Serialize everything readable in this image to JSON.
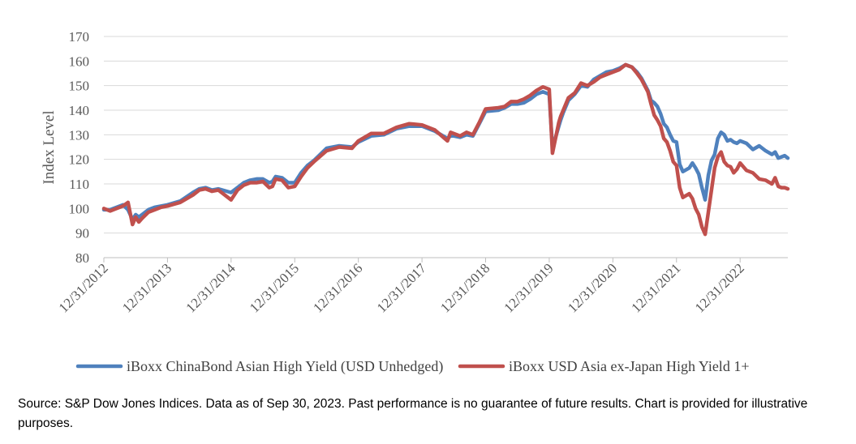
{
  "chart_data": {
    "type": "line",
    "title": "",
    "xlabel": "",
    "ylabel": "Index Level",
    "ylim": [
      80,
      170
    ],
    "y_ticks": [
      80,
      90,
      100,
      110,
      120,
      130,
      140,
      150,
      160,
      170
    ],
    "x_range": [
      2013.0,
      2023.75
    ],
    "x_tick_labels": [
      "12/31/2012",
      "12/31/2013",
      "12/31/2014",
      "12/31/2015",
      "12/31/2016",
      "12/31/2017",
      "12/31/2018",
      "12/31/2019",
      "12/31/2020",
      "12/31/2021",
      "12/31/2022"
    ],
    "x_tick_positions": [
      2013,
      2014,
      2015,
      2016,
      2017,
      2018,
      2019,
      2020,
      2021,
      2022,
      2023
    ],
    "grid": true,
    "legend_position": "bottom",
    "series": [
      {
        "name": "iBoxx ChinaBond Asian High Yield (USD Unhedged)",
        "color": "#4F81BD",
        "x": [
          2013.0,
          2013.1,
          2013.2,
          2013.3,
          2013.38,
          2013.45,
          2013.5,
          2013.55,
          2013.6,
          2013.7,
          2013.8,
          2013.9,
          2014.0,
          2014.2,
          2014.4,
          2014.5,
          2014.6,
          2014.7,
          2014.8,
          2015.0,
          2015.1,
          2015.2,
          2015.3,
          2015.4,
          2015.5,
          2015.6,
          2015.65,
          2015.7,
          2015.8,
          2015.9,
          2016.0,
          2016.1,
          2016.2,
          2016.3,
          2016.5,
          2016.7,
          2016.9,
          2017.0,
          2017.2,
          2017.4,
          2017.6,
          2017.8,
          2018.0,
          2018.2,
          2018.4,
          2018.45,
          2018.5,
          2018.6,
          2018.7,
          2018.8,
          2018.9,
          2019.0,
          2019.2,
          2019.3,
          2019.4,
          2019.5,
          2019.6,
          2019.7,
          2019.8,
          2019.9,
          2020.0,
          2020.05,
          2020.15,
          2020.18,
          2020.22,
          2020.3,
          2020.4,
          2020.5,
          2020.6,
          2020.7,
          2020.8,
          2020.9,
          2021.0,
          2021.1,
          2021.2,
          2021.3,
          2021.38,
          2021.45,
          2021.55,
          2021.6,
          2021.65,
          2021.7,
          2021.75,
          2021.8,
          2021.85,
          2021.9,
          2021.95,
          2022.0,
          2022.05,
          2022.1,
          2022.2,
          2022.25,
          2022.3,
          2022.35,
          2022.4,
          2022.45,
          2022.5,
          2022.55,
          2022.6,
          2022.65,
          2022.7,
          2022.75,
          2022.8,
          2022.85,
          2022.9,
          2022.95,
          2023.0,
          2023.1,
          2023.2,
          2023.3,
          2023.4,
          2023.5,
          2023.55,
          2023.6,
          2023.65,
          2023.7,
          2023.75
        ],
        "values": [
          99.5,
          99.5,
          100.5,
          101.5,
          99.5,
          95.5,
          97.5,
          96.5,
          97.5,
          99.5,
          100.5,
          101,
          101.5,
          103,
          106.5,
          108,
          108.5,
          107.5,
          108,
          106.5,
          108.5,
          110.5,
          111.5,
          112,
          112,
          110.5,
          111,
          113,
          112.5,
          110.5,
          110.5,
          114.5,
          117.5,
          119.5,
          124.5,
          125.5,
          125,
          127,
          129.5,
          130,
          132.5,
          133.5,
          133.5,
          131.5,
          128.5,
          129.5,
          129.5,
          129,
          130,
          129.5,
          134.5,
          139.5,
          140,
          141,
          142.5,
          142.5,
          143,
          144.5,
          146.5,
          147.5,
          146.5,
          124.5,
          133.5,
          136,
          139,
          144,
          146.5,
          150,
          149.5,
          152.5,
          154,
          155.5,
          156,
          157,
          158.5,
          157.5,
          155.5,
          153,
          148,
          144,
          143,
          141.5,
          138.5,
          134.5,
          133,
          130,
          127.5,
          127,
          118,
          115,
          116.5,
          118.5,
          116.5,
          114,
          108.5,
          103.5,
          113.5,
          119.5,
          122,
          128.5,
          131,
          130,
          127.5,
          128,
          127,
          126.5,
          127.5,
          126.5,
          124,
          125.5,
          123.5,
          122,
          123,
          120.5,
          121,
          121.5,
          120.5
        ]
      },
      {
        "name": "iBoxx USD Asia ex-Japan High Yield 1+",
        "color": "#C0504D",
        "x": [
          2013.0,
          2013.1,
          2013.2,
          2013.3,
          2013.38,
          2013.45,
          2013.5,
          2013.55,
          2013.6,
          2013.7,
          2013.8,
          2013.9,
          2014.0,
          2014.2,
          2014.4,
          2014.5,
          2014.6,
          2014.7,
          2014.8,
          2015.0,
          2015.1,
          2015.2,
          2015.3,
          2015.4,
          2015.5,
          2015.6,
          2015.65,
          2015.7,
          2015.8,
          2015.9,
          2016.0,
          2016.1,
          2016.2,
          2016.3,
          2016.5,
          2016.7,
          2016.9,
          2017.0,
          2017.2,
          2017.4,
          2017.6,
          2017.8,
          2018.0,
          2018.2,
          2018.4,
          2018.45,
          2018.5,
          2018.6,
          2018.7,
          2018.8,
          2018.9,
          2019.0,
          2019.2,
          2019.3,
          2019.4,
          2019.5,
          2019.6,
          2019.7,
          2019.8,
          2019.9,
          2020.0,
          2020.05,
          2020.15,
          2020.18,
          2020.22,
          2020.3,
          2020.4,
          2020.5,
          2020.6,
          2020.7,
          2020.8,
          2020.9,
          2021.0,
          2021.1,
          2021.2,
          2021.3,
          2021.38,
          2021.45,
          2021.55,
          2021.6,
          2021.65,
          2021.7,
          2021.75,
          2021.8,
          2021.85,
          2021.9,
          2021.95,
          2022.0,
          2022.05,
          2022.1,
          2022.2,
          2022.25,
          2022.3,
          2022.35,
          2022.4,
          2022.45,
          2022.5,
          2022.55,
          2022.6,
          2022.65,
          2022.7,
          2022.75,
          2022.8,
          2022.85,
          2022.9,
          2022.95,
          2023.0,
          2023.1,
          2023.2,
          2023.3,
          2023.4,
          2023.5,
          2023.55,
          2023.6,
          2023.65,
          2023.7,
          2023.75
        ],
        "values": [
          100,
          99,
          100,
          101,
          102.5,
          93.5,
          96.5,
          94.5,
          96,
          98.5,
          99.5,
          100.5,
          101,
          102.5,
          105.5,
          107.5,
          108,
          107,
          107.5,
          103.5,
          107.5,
          109.5,
          110.5,
          110.5,
          111,
          108.5,
          109,
          112,
          111.5,
          108.5,
          109,
          113,
          116.5,
          119,
          123.5,
          125,
          124.5,
          127.5,
          130.5,
          130.5,
          133,
          134.5,
          134,
          132,
          127.5,
          131,
          130.5,
          129.5,
          131,
          130,
          135,
          140.5,
          141,
          141.5,
          143.5,
          143.5,
          144.5,
          146,
          148,
          149.5,
          148.5,
          122.5,
          135,
          137.5,
          140,
          145,
          147,
          151,
          150,
          151.5,
          153.5,
          154.5,
          155.5,
          156.5,
          158.5,
          157.5,
          155,
          152.5,
          147.5,
          142.5,
          138,
          136,
          133.5,
          128.5,
          127,
          123.5,
          119,
          117.5,
          108.5,
          104.5,
          106,
          104,
          100,
          97.5,
          92.5,
          89.5,
          98.5,
          107.5,
          116.5,
          121,
          123,
          119,
          117.5,
          117,
          114.5,
          116,
          118.5,
          115.5,
          114.5,
          112,
          111.5,
          110,
          112.5,
          109,
          108.5,
          108.5,
          108
        ]
      }
    ]
  },
  "footnote": {
    "text": "Source: S&P Dow Jones Indices.  Data as of Sep 30, 2023.  Past performance is no guarantee of future results.  Chart is provided for illustrative purposes."
  }
}
